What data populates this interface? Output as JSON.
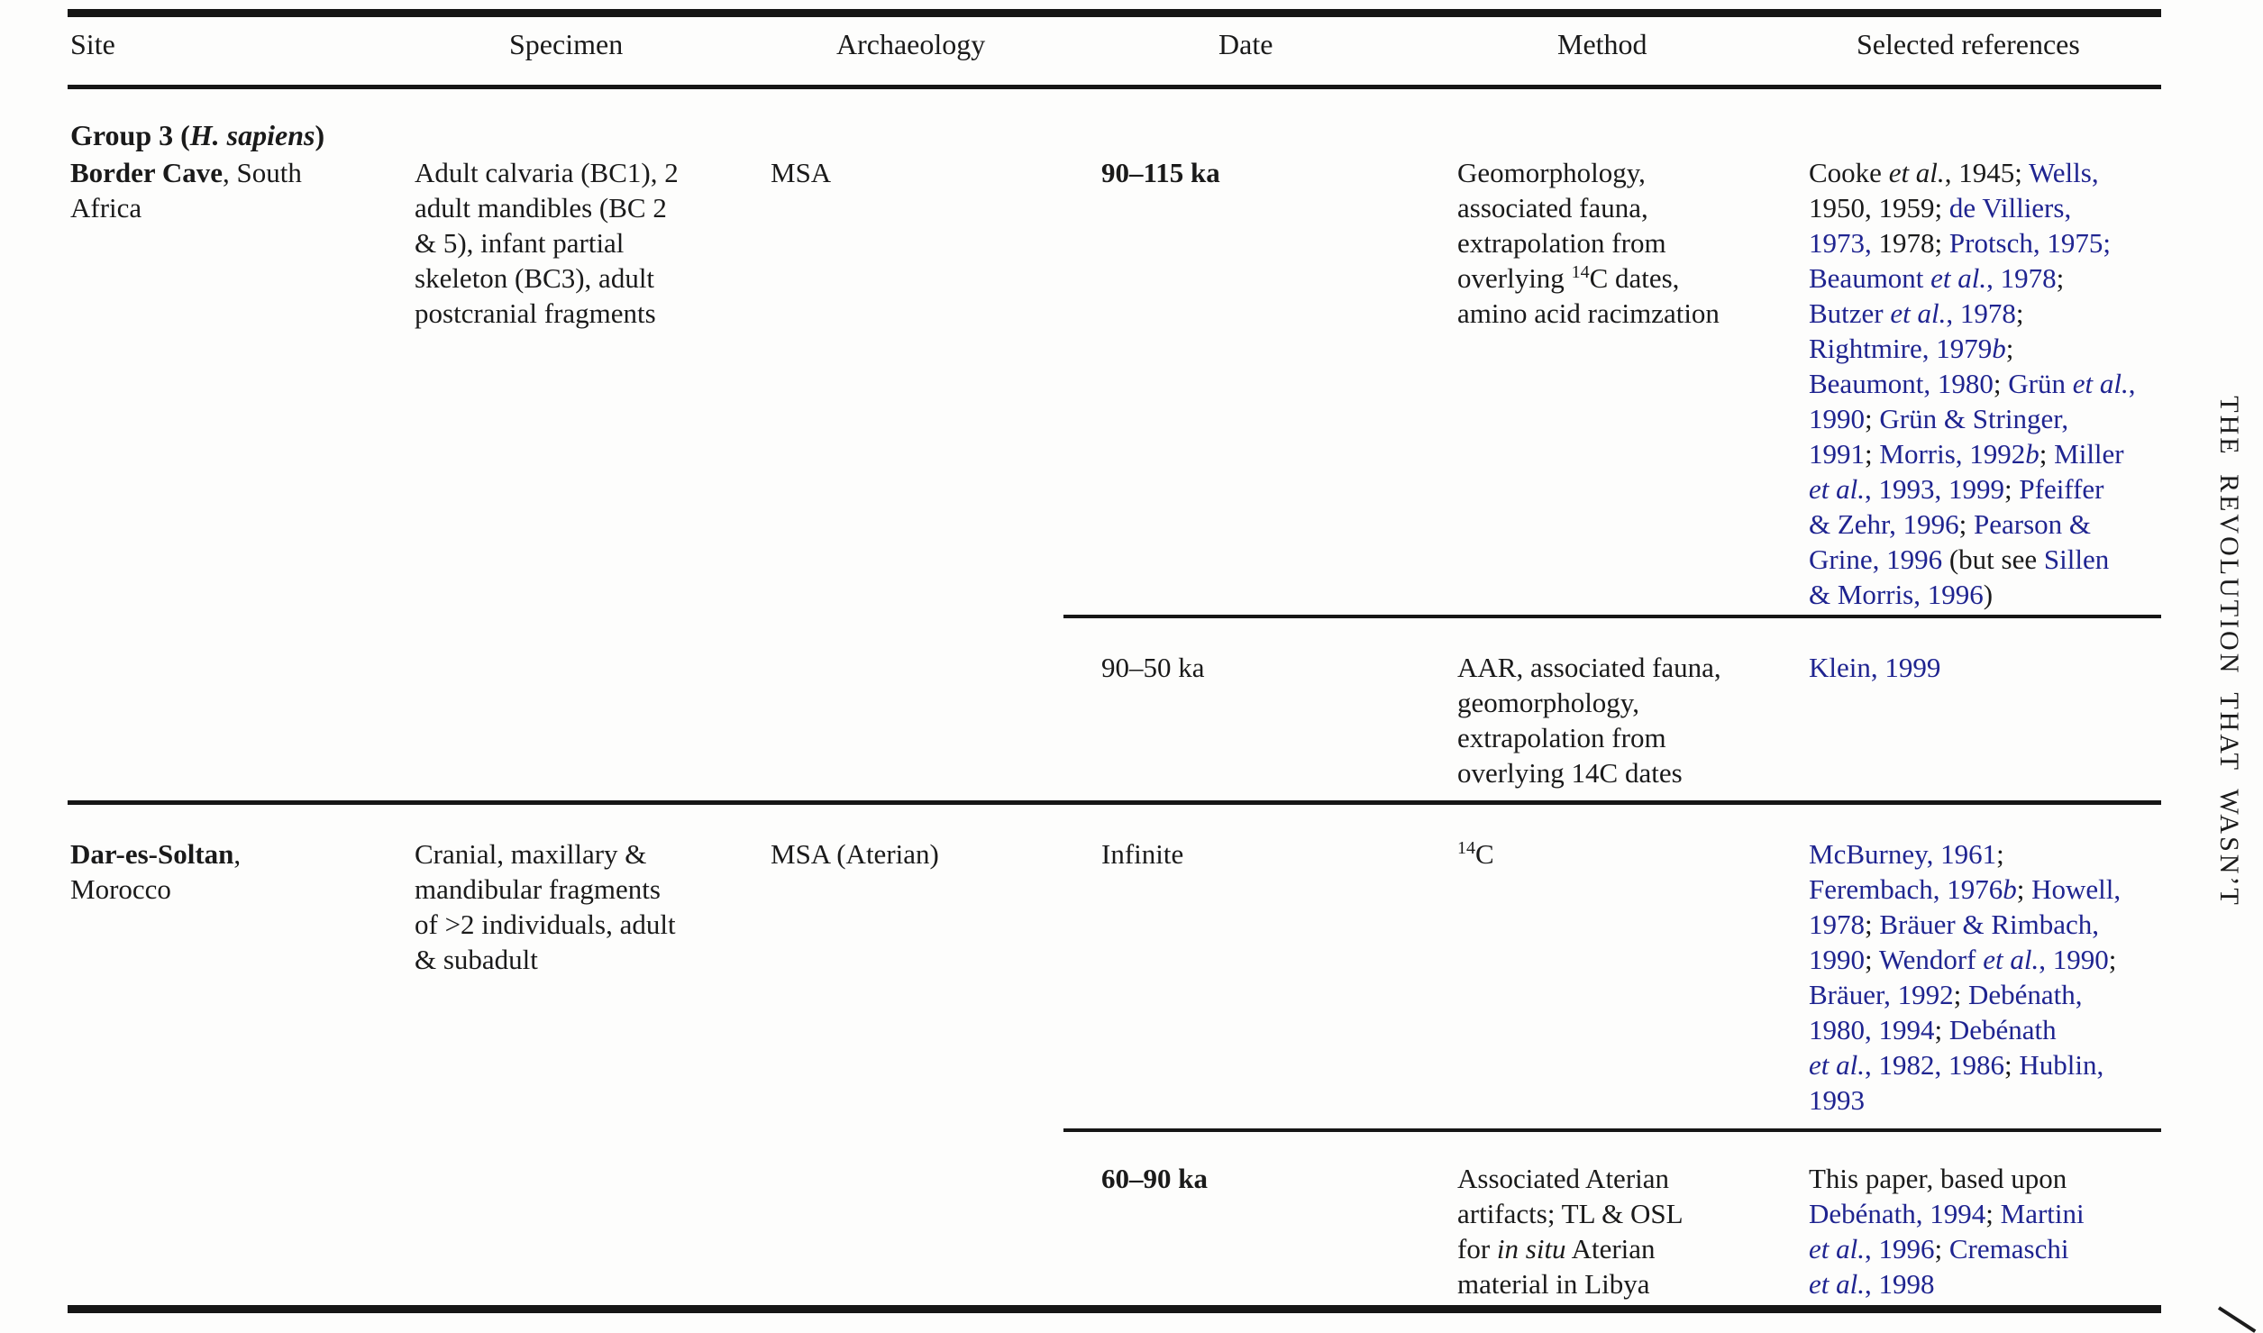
{
  "page": {
    "running_head_vertical": "THE REVOLUTION THAT WASN’T",
    "colors": {
      "link": "#1f2490",
      "ink": "#1a1a1a"
    }
  },
  "table": {
    "headers": {
      "site": "Site",
      "specimen": "Specimen",
      "archaeology": "Archaeology",
      "date": "Date",
      "method": "Method",
      "references": "Selected references"
    },
    "group_label": [
      {
        "t": "Group 3 (",
        "b": true
      },
      {
        "t": "H. sapiens",
        "b": true,
        "i": true
      },
      {
        "t": ")",
        "b": true
      }
    ],
    "rows": {
      "border_cave": {
        "site": [
          {
            "t": "Border Cave",
            "b": true
          },
          {
            "t": ", South"
          },
          {
            "br": true
          },
          {
            "t": "Africa"
          }
        ],
        "specimen": [
          {
            "t": "Adult calvaria (BC1), 2"
          },
          {
            "br": true
          },
          {
            "t": "adult mandibles (BC 2"
          },
          {
            "br": true
          },
          {
            "t": "& 5), infant partial"
          },
          {
            "br": true
          },
          {
            "t": "skeleton (BC3), adult"
          },
          {
            "br": true
          },
          {
            "t": "postcranial fragments"
          }
        ],
        "archaeology": [
          {
            "t": "MSA"
          }
        ],
        "date": [
          {
            "t": "90–115 ka",
            "b": true
          }
        ],
        "method": [
          {
            "t": "Geomorphology,"
          },
          {
            "br": true
          },
          {
            "t": "associated fauna,"
          },
          {
            "br": true
          },
          {
            "t": "extrapolation from"
          },
          {
            "br": true
          },
          {
            "t": "overlying "
          },
          {
            "t": "14",
            "sup": true
          },
          {
            "t": "C dates,"
          },
          {
            "br": true
          },
          {
            "t": "amino acid racimzation"
          }
        ],
        "references": [
          {
            "t": "Cooke "
          },
          {
            "t": "et al.",
            "i": true
          },
          {
            "t": ", 1945; "
          },
          {
            "t": "Wells,",
            "c": "blue"
          },
          {
            "br": true
          },
          {
            "t": "1950, 1959; "
          },
          {
            "t": "de Villiers,",
            "c": "blue"
          },
          {
            "br": true
          },
          {
            "t": "1973,",
            "c": "blue"
          },
          {
            "t": " 1978; "
          },
          {
            "t": "Protsch, 1975;",
            "c": "blue"
          },
          {
            "br": true
          },
          {
            "t": "Beaumont ",
            "c": "blue"
          },
          {
            "t": "et al.",
            "c": "blue",
            "i": true
          },
          {
            "t": ", 1978",
            "c": "blue"
          },
          {
            "t": ";"
          },
          {
            "br": true
          },
          {
            "t": "Butzer ",
            "c": "blue"
          },
          {
            "t": "et al.",
            "c": "blue",
            "i": true
          },
          {
            "t": ", 1978",
            "c": "blue"
          },
          {
            "t": ";"
          },
          {
            "br": true
          },
          {
            "t": "Rightmire, 1979",
            "c": "blue"
          },
          {
            "t": "b",
            "c": "blue",
            "i": true
          },
          {
            "t": ";"
          },
          {
            "br": true
          },
          {
            "t": "Beaumont, 1980",
            "c": "blue"
          },
          {
            "t": "; "
          },
          {
            "t": "Grün ",
            "c": "blue"
          },
          {
            "t": "et al.",
            "c": "blue",
            "i": true
          },
          {
            "t": ",",
            "c": "blue"
          },
          {
            "br": true
          },
          {
            "t": "1990",
            "c": "blue"
          },
          {
            "t": "; "
          },
          {
            "t": "Grün & Stringer,",
            "c": "blue"
          },
          {
            "br": true
          },
          {
            "t": "1991",
            "c": "blue"
          },
          {
            "t": "; "
          },
          {
            "t": "Morris, 1992",
            "c": "blue"
          },
          {
            "t": "b",
            "c": "blue",
            "i": true
          },
          {
            "t": "; "
          },
          {
            "t": "Miller",
            "c": "blue"
          },
          {
            "br": true
          },
          {
            "t": "et al.",
            "c": "blue",
            "i": true
          },
          {
            "t": ", 1993, 1999",
            "c": "blue"
          },
          {
            "t": "; "
          },
          {
            "t": "Pfeiffer",
            "c": "blue"
          },
          {
            "br": true
          },
          {
            "t": "& Zehr, 1996",
            "c": "blue"
          },
          {
            "t": "; "
          },
          {
            "t": "Pearson &",
            "c": "blue"
          },
          {
            "br": true
          },
          {
            "t": "Grine, 1996",
            "c": "blue"
          },
          {
            "t": " (but see "
          },
          {
            "t": "Sillen",
            "c": "blue"
          },
          {
            "br": true
          },
          {
            "t": "& Morris, 1996",
            "c": "blue"
          },
          {
            "t": ")"
          }
        ]
      },
      "border_cave_alt": {
        "date": [
          {
            "t": "90–50 ka"
          }
        ],
        "method": [
          {
            "t": "AAR, associated fauna,"
          },
          {
            "br": true
          },
          {
            "t": "geomorphology,"
          },
          {
            "br": true
          },
          {
            "t": "extrapolation from"
          },
          {
            "br": true
          },
          {
            "t": "overlying 14C dates"
          }
        ],
        "references": [
          {
            "t": "Klein, 1999",
            "c": "blue"
          }
        ]
      },
      "dar_es_soltan": {
        "site": [
          {
            "t": "Dar-es-Soltan",
            "b": true
          },
          {
            "t": ","
          },
          {
            "br": true
          },
          {
            "t": "Morocco"
          }
        ],
        "specimen": [
          {
            "t": "Cranial, maxillary &"
          },
          {
            "br": true
          },
          {
            "t": "mandibular fragments"
          },
          {
            "br": true
          },
          {
            "t": "of >2 individuals, adult"
          },
          {
            "br": true
          },
          {
            "t": "& subadult"
          }
        ],
        "archaeology": [
          {
            "t": "MSA (Aterian)"
          }
        ],
        "date": [
          {
            "t": "Infinite"
          }
        ],
        "method": [
          {
            "t": "14",
            "sup": true
          },
          {
            "t": "C"
          }
        ],
        "references": [
          {
            "t": "McBurney, 1961",
            "c": "blue"
          },
          {
            "t": ";"
          },
          {
            "br": true
          },
          {
            "t": "Ferembach, 1976",
            "c": "blue"
          },
          {
            "t": "b",
            "c": "blue",
            "i": true
          },
          {
            "t": "; "
          },
          {
            "t": "Howell,",
            "c": "blue"
          },
          {
            "br": true
          },
          {
            "t": "1978",
            "c": "blue"
          },
          {
            "t": "; "
          },
          {
            "t": "Bräuer & Rimbach,",
            "c": "blue"
          },
          {
            "br": true
          },
          {
            "t": "1990",
            "c": "blue"
          },
          {
            "t": "; "
          },
          {
            "t": "Wendorf ",
            "c": "blue"
          },
          {
            "t": "et al.",
            "c": "blue",
            "i": true
          },
          {
            "t": ", 1990",
            "c": "blue"
          },
          {
            "t": ";"
          },
          {
            "br": true
          },
          {
            "t": "Bräuer, 1992",
            "c": "blue"
          },
          {
            "t": "; "
          },
          {
            "t": "Debénath,",
            "c": "blue"
          },
          {
            "br": true
          },
          {
            "t": "1980, 1994",
            "c": "blue"
          },
          {
            "t": "; "
          },
          {
            "t": "Debénath",
            "c": "blue"
          },
          {
            "br": true
          },
          {
            "t": "et al.",
            "c": "blue",
            "i": true
          },
          {
            "t": ", 1982, 1986",
            "c": "blue"
          },
          {
            "t": "; "
          },
          {
            "t": "Hublin,",
            "c": "blue"
          },
          {
            "br": true
          },
          {
            "t": "1993",
            "c": "blue"
          }
        ]
      },
      "dar_es_soltan_alt": {
        "date": [
          {
            "t": "60–90 ka",
            "b": true
          }
        ],
        "method": [
          {
            "t": "Associated Aterian"
          },
          {
            "br": true
          },
          {
            "t": "artifacts; TL & OSL"
          },
          {
            "br": true
          },
          {
            "t": "for "
          },
          {
            "t": "in situ",
            "i": true
          },
          {
            "t": " Aterian"
          },
          {
            "br": true
          },
          {
            "t": "material in Libya"
          }
        ],
        "references": [
          {
            "t": "This paper, based upon"
          },
          {
            "br": true
          },
          {
            "t": "Debénath, 1994",
            "c": "blue"
          },
          {
            "t": "; "
          },
          {
            "t": "Martini",
            "c": "blue"
          },
          {
            "br": true
          },
          {
            "t": "et al.",
            "c": "blue",
            "i": true
          },
          {
            "t": ", 1996",
            "c": "blue"
          },
          {
            "t": "; "
          },
          {
            "t": "Cremaschi",
            "c": "blue"
          },
          {
            "br": true
          },
          {
            "t": "et al.",
            "c": "blue",
            "i": true
          },
          {
            "t": ", 1998",
            "c": "blue"
          }
        ]
      }
    }
  }
}
